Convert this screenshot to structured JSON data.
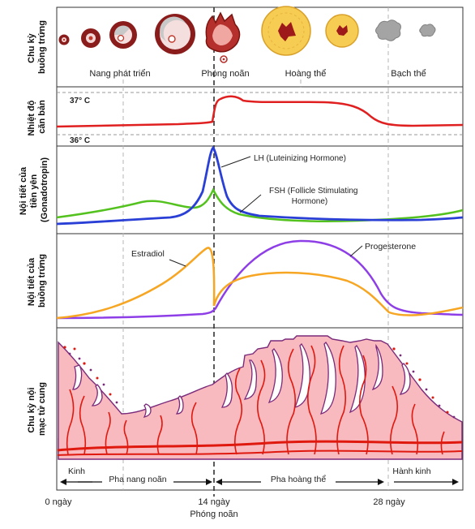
{
  "rows": [
    {
      "id": "ovary",
      "label_lines": [
        "Chu kỳ",
        "buồng trứng"
      ]
    },
    {
      "id": "temp",
      "label_lines": [
        "Nhiệt độ",
        "căn bản"
      ]
    },
    {
      "id": "pituitary",
      "label_lines": [
        "Nội tiết của",
        "tiền yên",
        "(Gonadotropin)"
      ]
    },
    {
      "id": "ovarian_hormones",
      "label_lines": [
        "Nội tiết của",
        "buồng trứng"
      ]
    },
    {
      "id": "endometrium",
      "label_lines": [
        "Chu kỳ nội",
        "mạc tử cung"
      ]
    }
  ],
  "ovary_stages": {
    "follicle": "Nang phát triển",
    "ovulation": "Phóng noãn",
    "corpus_luteum": "Hoàng thể",
    "corpus_albicans": "Bạch thể"
  },
  "temperature": {
    "high_label": "37° C",
    "low_label": "36° C",
    "line_color": "#e02020"
  },
  "gonadotropins": {
    "lh_label": "LH (Luteinizing Hormone)",
    "fsh_label_lines": [
      "FSH (Follicle Stimulating",
      "Hormone)"
    ],
    "lh_color": "#2a3fd6",
    "fsh_color": "#54c21e"
  },
  "ovarian_hormones": {
    "estradiol_label": "Estradiol",
    "progesterone_label": "Progesterone",
    "estradiol_color": "#f6a623",
    "progesterone_color": "#8e3ee6"
  },
  "phases": {
    "menses_start": "Kinh",
    "follicular": "Pha nang noãn",
    "luteal": "Pha hoàng thể",
    "menses_end": "Hành kinh"
  },
  "axis": {
    "day0": "0 ngày",
    "day14": "14 ngày",
    "day14_sub": "Phóng noãn",
    "day28": "28 ngày"
  },
  "colors": {
    "endometrium_fill": "#f8b9bf",
    "vessel": "#e0190f",
    "gland": "#7a2a7a",
    "ovary_dark": "#8b1c1c",
    "luteum": "#f6cc52"
  }
}
